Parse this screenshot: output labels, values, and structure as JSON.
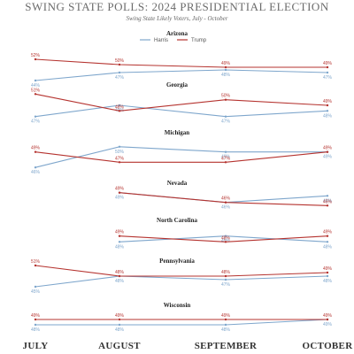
{
  "chart_data": {
    "type": "line",
    "title": "SWING STATE POLLS: 2024 PRESIDENTIAL ELECTION",
    "subtitle": "Swing State Likely Voters, July - October",
    "categories": [
      "JULY",
      "AUGUST",
      "SEPTEMBER",
      "OCTOBER"
    ],
    "legend": {
      "position": "top-center",
      "items": [
        {
          "name": "Harris",
          "color": "#7ea6cc"
        },
        {
          "name": "Trump",
          "color": "#b5332f"
        }
      ]
    },
    "colors": {
      "harris": "#7ea6cc",
      "trump": "#b5332f"
    },
    "grid": false,
    "panels": [
      {
        "name": "Arizona",
        "series": [
          {
            "name": "Harris",
            "values": [
              44,
              47,
              48,
              47
            ]
          },
          {
            "name": "Trump",
            "values": [
              52,
              50,
              49,
              49
            ]
          }
        ]
      },
      {
        "name": "Georgia",
        "series": [
          {
            "name": "Harris",
            "values": [
              47,
              49,
              47,
              48
            ]
          },
          {
            "name": "Trump",
            "values": [
              51,
              48,
              50,
              49
            ]
          }
        ]
      },
      {
        "name": "Michigan",
        "series": [
          {
            "name": "Harris",
            "values": [
              46,
              50,
              49,
              49
            ]
          },
          {
            "name": "Trump",
            "values": [
              49,
              47,
              47,
              49
            ]
          }
        ]
      },
      {
        "name": "Nevada",
        "series": [
          {
            "name": "Harris",
            "values": [
              null,
              49,
              46,
              48
            ]
          },
          {
            "name": "Trump",
            "values": [
              null,
              49,
              46,
              45
            ]
          }
        ]
      },
      {
        "name": "North Carolina",
        "series": [
          {
            "name": "Harris",
            "values": [
              null,
              48,
              49,
              48
            ]
          },
          {
            "name": "Trump",
            "values": [
              null,
              49,
              48,
              49
            ]
          }
        ]
      },
      {
        "name": "Pennsylvania",
        "series": [
          {
            "name": "Harris",
            "values": [
              45,
              48,
              47,
              48
            ]
          },
          {
            "name": "Trump",
            "values": [
              51,
              48,
              48,
              49
            ]
          }
        ]
      },
      {
        "name": "Wisconsin",
        "series": [
          {
            "name": "Harris",
            "values": [
              48,
              48,
              48,
              49
            ]
          },
          {
            "name": "Trump",
            "values": [
              49,
              49,
              49,
              49
            ]
          }
        ]
      }
    ],
    "label_text": {
      "Arizona": {
        "Harris": [
          "44%",
          "47%",
          "48%",
          "47%"
        ],
        "Trump": [
          "52%",
          "50%",
          "49%",
          "49%"
        ]
      },
      "Georgia": {
        "Harris": [
          "47%",
          "49%",
          "47%",
          "48%"
        ],
        "Trump": [
          "51%",
          "48%",
          "50%",
          "49%"
        ]
      },
      "Michigan": {
        "Harris": [
          "46%",
          "50%",
          "49%",
          "49%"
        ],
        "Trump": [
          "49%",
          "47%",
          "47%",
          "49%"
        ]
      },
      "Nevada": {
        "Harris": [
          null,
          "49%",
          "46%",
          "48%"
        ],
        "Trump": [
          null,
          "49%",
          "46%",
          "45%"
        ]
      },
      "North Carolina": {
        "Harris": [
          null,
          "48%",
          "49%",
          "48%"
        ],
        "Trump": [
          null,
          "49%",
          "48%",
          "49%"
        ]
      },
      "Pennsylvania": {
        "Harris": [
          "45%",
          "48%",
          "47%",
          "48%"
        ],
        "Trump": [
          "51%",
          "48%",
          "48%",
          "49%"
        ]
      },
      "Wisconsin": {
        "Harris": [
          "48%",
          "48%",
          "48%",
          "49%"
        ],
        "Trump": [
          "49%",
          "49%",
          "49%",
          "49%"
        ]
      }
    }
  }
}
